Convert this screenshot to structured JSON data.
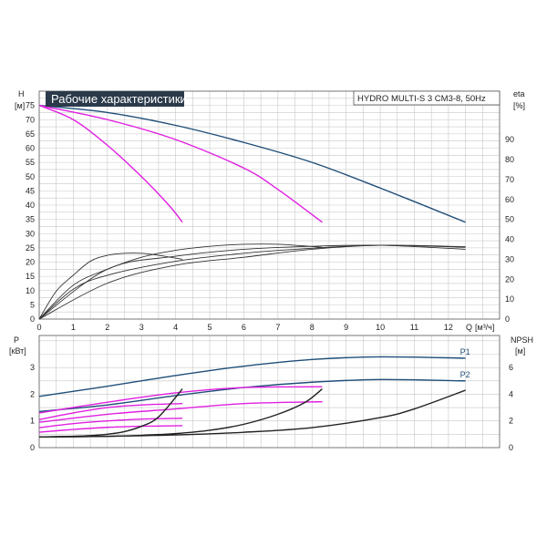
{
  "chart_data": [
    {
      "type": "line",
      "title": "Рабочие характеристики",
      "model_label": "HYDRO MULTI-S 3 CM3-8, 50Hz",
      "ylabel": "H",
      "yunit": "[м]",
      "y2label": "eta",
      "y2unit": "[%]",
      "xlabel": "Q",
      "xunit": "[м³/ч]",
      "xlim": [
        0,
        13.5
      ],
      "ylim": [
        0,
        80
      ],
      "y2lim": [
        0,
        114.3
      ],
      "xticks": [
        "0",
        "1",
        "2",
        "3",
        "4",
        "5",
        "6",
        "7",
        "8",
        "9",
        "10",
        "11",
        "12"
      ],
      "yticks": [
        "0",
        "5",
        "10",
        "15",
        "20",
        "25",
        "30",
        "35",
        "40",
        "45",
        "50",
        "55",
        "60",
        "65",
        "70",
        "75"
      ],
      "y2ticks": [
        "0",
        "10",
        "20",
        "30",
        "40",
        "50",
        "60",
        "70",
        "80",
        "90"
      ],
      "grid": true,
      "series": [
        {
          "color": "#1f4e79",
          "axis": "y",
          "x": [
            0,
            2,
            4,
            6,
            8,
            10,
            12.5
          ],
          "y": [
            75,
            72.5,
            68,
            62,
            55,
            46,
            34
          ]
        },
        {
          "color": "#e020e0",
          "axis": "y",
          "x": [
            0,
            2,
            4,
            6,
            7,
            8.3
          ],
          "y": [
            75,
            70,
            63,
            53,
            45.5,
            34
          ]
        },
        {
          "color": "#e020e0",
          "axis": "y",
          "x": [
            0,
            1,
            2,
            3,
            3.8,
            4.2
          ],
          "y": [
            75,
            70,
            61,
            50,
            40,
            34
          ]
        },
        {
          "color": "#333333",
          "axis": "y2",
          "x": [
            0,
            1,
            2,
            4,
            6,
            8,
            10,
            12.5
          ],
          "y": [
            0,
            15,
            22,
            29,
            33,
            35.5,
            37,
            36
          ]
        },
        {
          "color": "#333333",
          "axis": "y2",
          "x": [
            0,
            1,
            2,
            3,
            4,
            5,
            6,
            7,
            8.3
          ],
          "y": [
            0,
            17,
            25,
            31,
            34.5,
            36.5,
            37.5,
            37.5,
            36
          ]
        },
        {
          "color": "#333333",
          "axis": "y2",
          "x": [
            0,
            0.5,
            1,
            1.5,
            2,
            2.5,
            3,
            3.5,
            4.2
          ],
          "y": [
            0,
            14,
            22,
            29,
            32,
            33,
            33,
            32,
            30
          ]
        },
        {
          "color": "#333333",
          "axis": "y2",
          "x": [
            0,
            2,
            4,
            6,
            8,
            10,
            12.5
          ],
          "y": [
            0,
            18,
            27,
            31,
            35,
            37,
            36.3
          ]
        },
        {
          "color": "#333333",
          "axis": "y2",
          "x": [
            0,
            2,
            4,
            6,
            8,
            10,
            12.5
          ],
          "y": [
            0,
            25,
            31.5,
            35,
            36.5,
            37,
            35
          ]
        }
      ]
    },
    {
      "type": "line",
      "ylabel": "P",
      "yunit": "[кВт]",
      "y2label": "NPSH",
      "y2unit": "[м]",
      "xlim": [
        0,
        13.5
      ],
      "ylim": [
        0,
        4.2
      ],
      "y2lim": [
        0,
        8.4
      ],
      "yticks": [
        "0",
        "1",
        "2",
        "3"
      ],
      "y2ticks": [
        "0",
        "2",
        "4",
        "6"
      ],
      "grid": true,
      "series": [
        {
          "name": "P1",
          "color": "#1f4e79",
          "axis": "y",
          "x": [
            0,
            2,
            4,
            6,
            8,
            10,
            12.5
          ],
          "y": [
            1.92,
            2.3,
            2.7,
            3.05,
            3.3,
            3.4,
            3.35
          ]
        },
        {
          "name": "P2",
          "color": "#1f4e79",
          "axis": "y",
          "x": [
            0,
            2,
            4,
            6,
            8,
            10,
            12.5
          ],
          "y": [
            1.35,
            1.6,
            1.95,
            2.25,
            2.45,
            2.55,
            2.5
          ]
        },
        {
          "color": "#e020e0",
          "axis": "y",
          "x": [
            0,
            2,
            4,
            6,
            8.3
          ],
          "y": [
            1.3,
            1.7,
            2.05,
            2.25,
            2.28
          ]
        },
        {
          "color": "#e020e0",
          "axis": "y",
          "x": [
            0,
            2,
            4,
            6,
            8.3
          ],
          "y": [
            0.95,
            1.25,
            1.45,
            1.65,
            1.72
          ]
        },
        {
          "color": "#e020e0",
          "axis": "y",
          "x": [
            0,
            1,
            2,
            3,
            4.2
          ],
          "y": [
            1.05,
            1.3,
            1.5,
            1.6,
            1.65
          ]
        },
        {
          "color": "#e020e0",
          "axis": "y",
          "x": [
            0,
            1,
            2,
            3,
            4.2
          ],
          "y": [
            0.75,
            0.9,
            1.0,
            1.07,
            1.1
          ]
        },
        {
          "color": "#e020e0",
          "axis": "y",
          "x": [
            0,
            1,
            2,
            3,
            4.2
          ],
          "y": [
            0.58,
            0.68,
            0.76,
            0.8,
            0.82
          ]
        },
        {
          "color": "#222222",
          "axis": "y2",
          "x": [
            0,
            2,
            4,
            6,
            8,
            10,
            11,
            12.5
          ],
          "y": [
            0.8,
            0.85,
            0.95,
            1.15,
            1.5,
            2.25,
            2.9,
            4.3
          ]
        },
        {
          "color": "#222222",
          "axis": "y2",
          "x": [
            0,
            1,
            2,
            3,
            4,
            5,
            6,
            7,
            7.8,
            8.3
          ],
          "y": [
            0.8,
            0.82,
            0.85,
            0.92,
            1.05,
            1.3,
            1.75,
            2.5,
            3.4,
            4.4
          ]
        },
        {
          "color": "#222222",
          "axis": "y2",
          "x": [
            0,
            0.5,
            1,
            1.5,
            2,
            2.5,
            3,
            3.5,
            4.2
          ],
          "y": [
            0.8,
            0.82,
            0.85,
            0.9,
            1.0,
            1.2,
            1.6,
            2.3,
            4.4
          ]
        }
      ]
    }
  ]
}
